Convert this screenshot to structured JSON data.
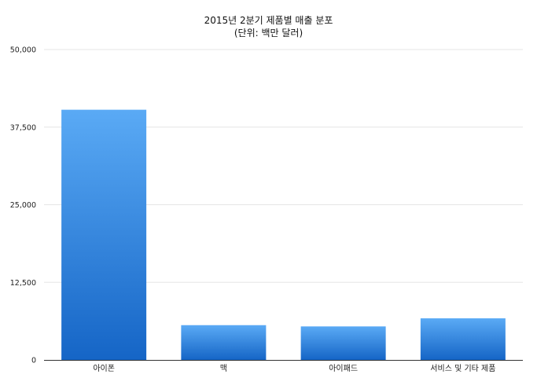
{
  "chart_data": {
    "type": "bar",
    "title": "2015년 2분기 제품별 매출 분포",
    "subtitle": "(단위: 백만 달러)",
    "xlabel": "",
    "ylabel": "",
    "categories": [
      "아이폰",
      "맥",
      "아이패드",
      "서비스 및 기타 제품"
    ],
    "values": [
      40300,
      5600,
      5400,
      6700
    ],
    "ylim": [
      0,
      50000
    ],
    "yticks": [
      0,
      12500,
      25000,
      37500,
      50000
    ],
    "ytick_labels": [
      "0",
      "12,500",
      "25,000",
      "37,500",
      "50,000"
    ],
    "grid": true,
    "legend": "none",
    "colors": {
      "bar_top": "#5aaaf5",
      "bar_bottom": "#1565c6",
      "grid": "#e6e6e6",
      "axis": "#333333"
    }
  }
}
